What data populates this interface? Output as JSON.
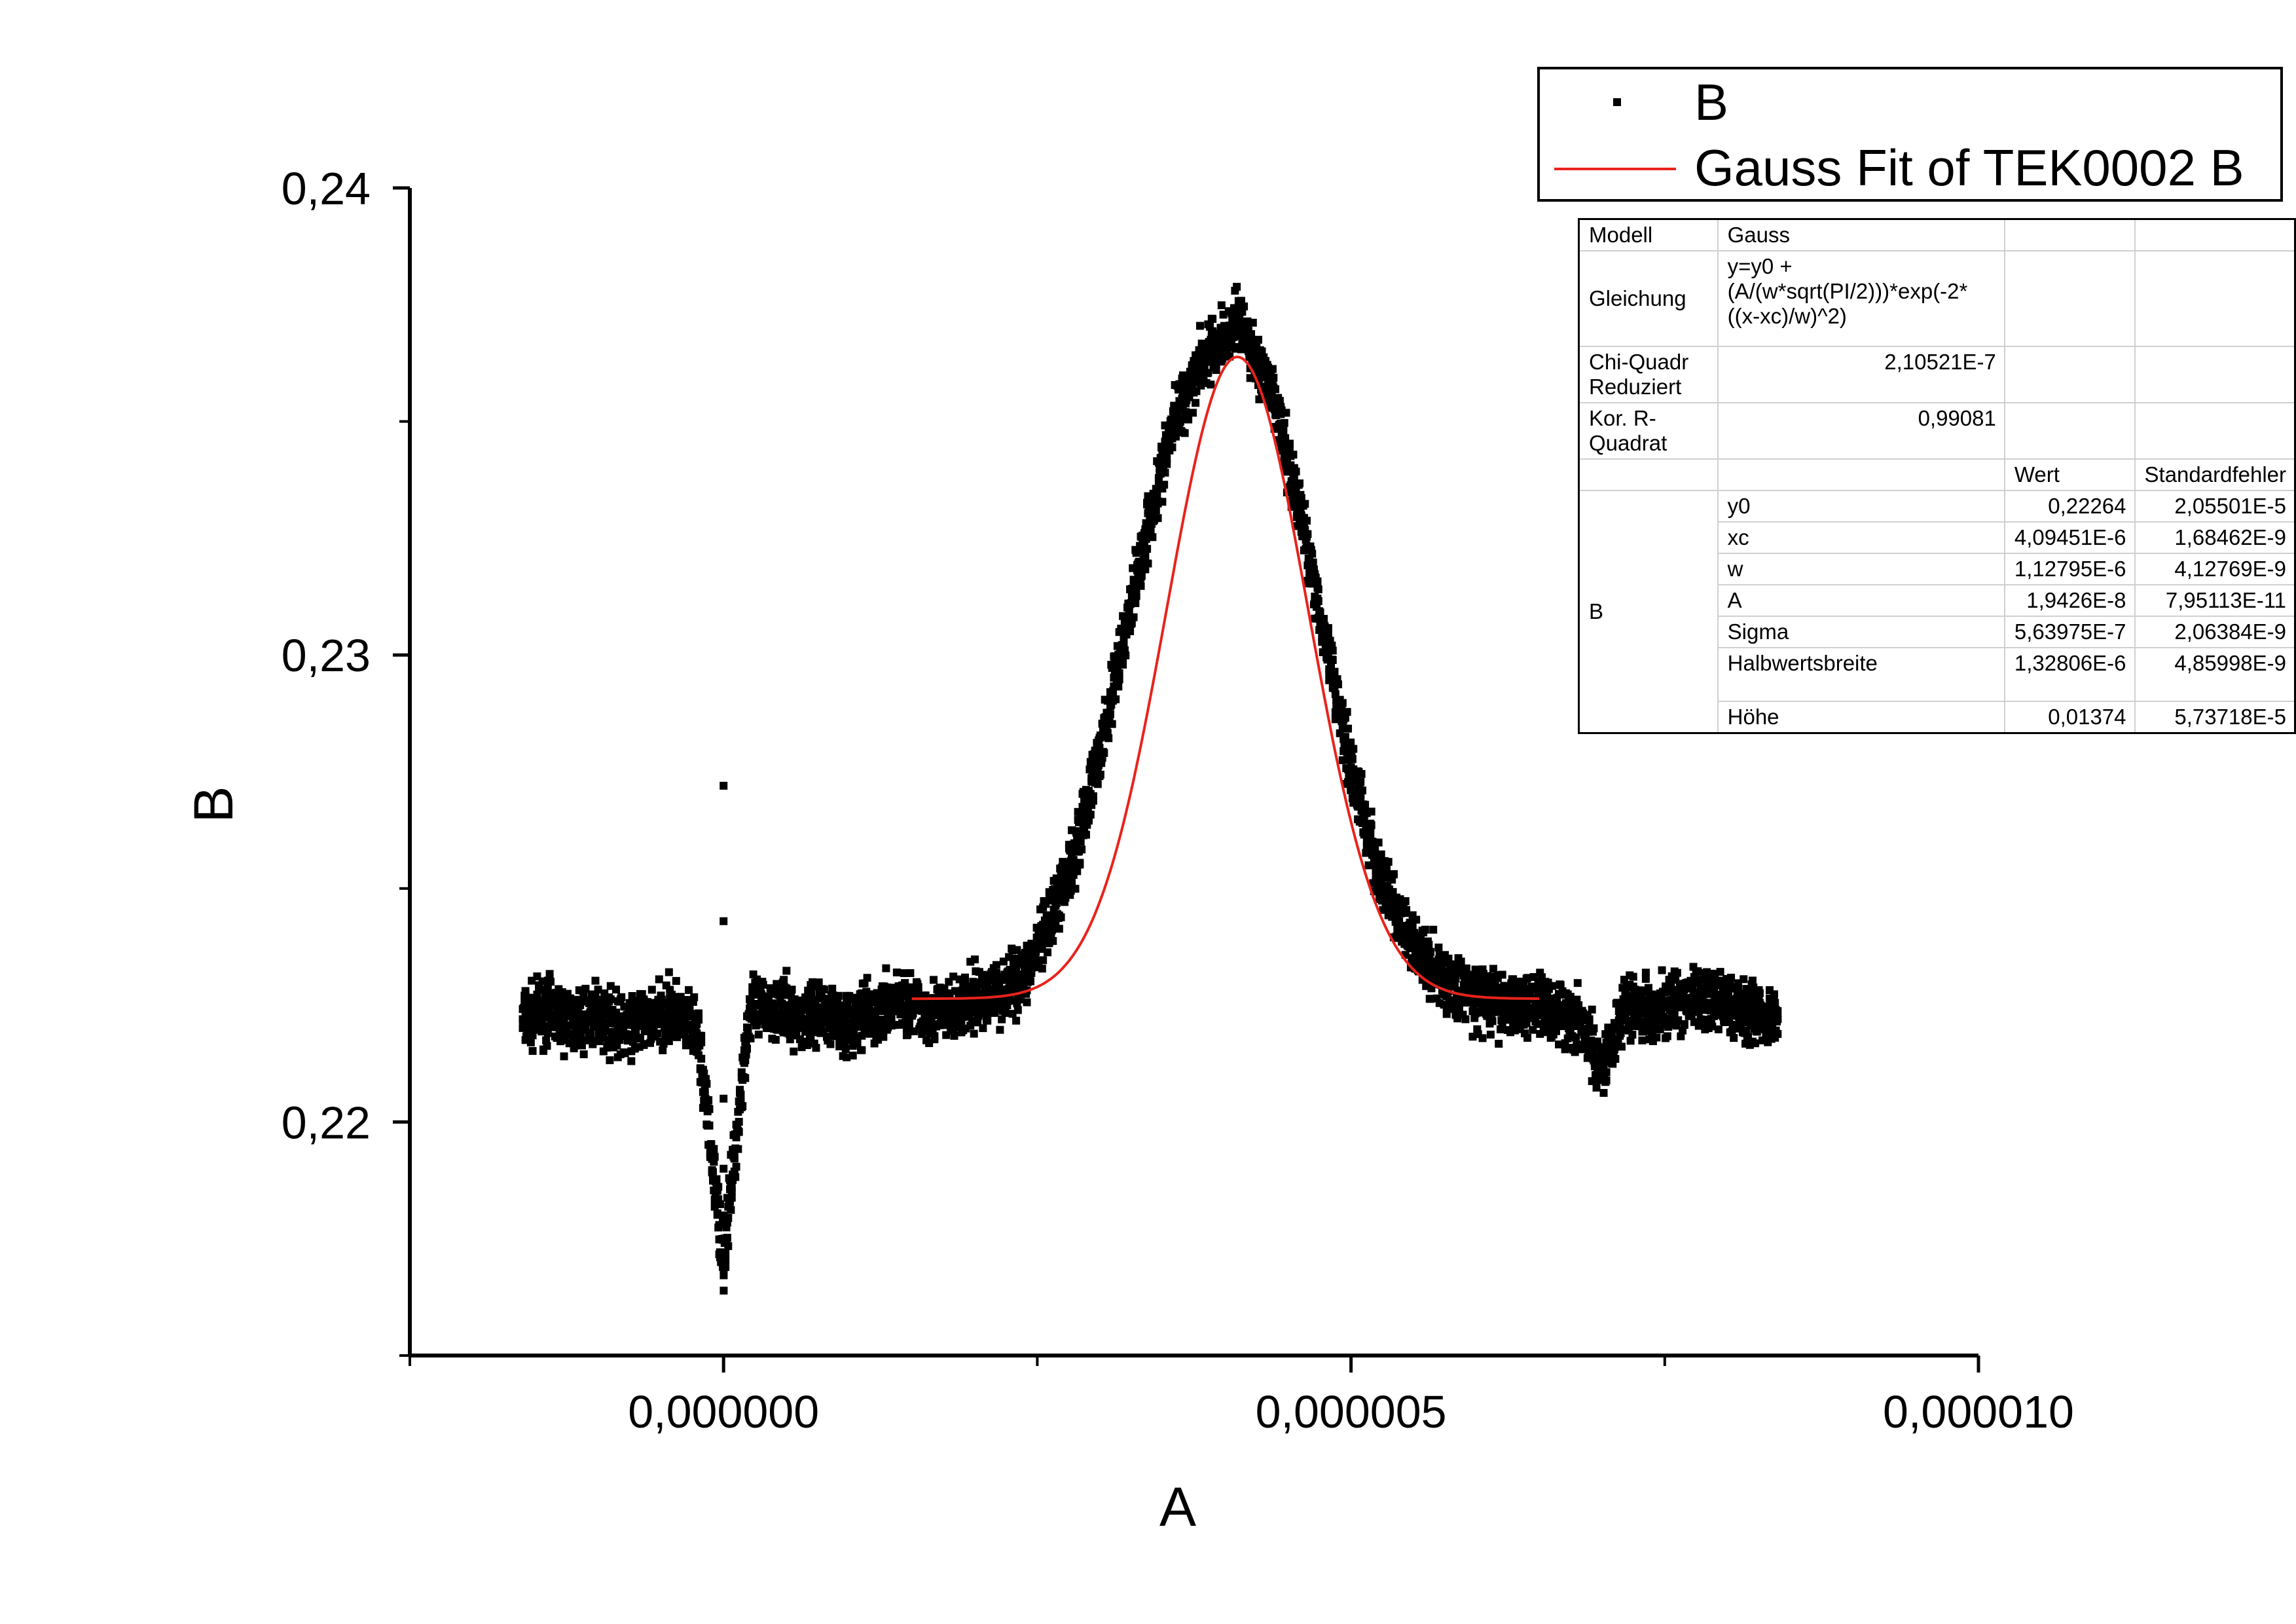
{
  "chart_data": {
    "type": "scatter",
    "xlabel": "A",
    "ylabel": "B",
    "xlim": [
      -2.5e-06,
      1e-05
    ],
    "ylim": [
      0.215,
      0.24
    ],
    "x_ticks": [
      {
        "value": 0,
        "label": "0,000000"
      },
      {
        "value": 5e-06,
        "label": "0,000005"
      },
      {
        "value": 1e-05,
        "label": "0,000010"
      }
    ],
    "y_ticks": [
      {
        "value": 0.22,
        "label": "0,22"
      },
      {
        "value": 0.23,
        "label": "0,23"
      },
      {
        "value": 0.24,
        "label": "0,24"
      }
    ],
    "series": [
      {
        "name": "B",
        "kind": "scatter",
        "color": "#000000",
        "x_range": [
          -1.6e-06,
          8.4e-06
        ],
        "points": [
          [
            -1.6e-06,
            0.2222
          ],
          [
            -1.4e-06,
            0.2224
          ],
          [
            -1.2e-06,
            0.2221
          ],
          [
            -1e-06,
            0.2223
          ],
          [
            -8e-07,
            0.222
          ],
          [
            -6e-07,
            0.2222
          ],
          [
            -4e-07,
            0.2224
          ],
          [
            -2e-07,
            0.2218
          ],
          [
            0.0,
            0.217
          ],
          [
            0.0,
            0.218
          ],
          [
            0.0,
            0.219
          ],
          [
            0.0,
            0.2205
          ],
          [
            0.0,
            0.2243
          ],
          [
            0.0,
            0.2272
          ],
          [
            2e-07,
            0.2223
          ],
          [
            4e-07,
            0.2225
          ],
          [
            6e-07,
            0.2222
          ],
          [
            8e-07,
            0.2224
          ],
          [
            1e-06,
            0.2221
          ],
          [
            1.2e-06,
            0.2223
          ],
          [
            1.4e-06,
            0.2226
          ],
          [
            1.6e-06,
            0.2224
          ],
          [
            1.8e-06,
            0.2223
          ],
          [
            2e-06,
            0.2226
          ],
          [
            2.2e-06,
            0.2228
          ],
          [
            2.4e-06,
            0.2232
          ],
          [
            2.6e-06,
            0.2242
          ],
          [
            2.8e-06,
            0.2258
          ],
          [
            3e-06,
            0.2279
          ],
          [
            3.2e-06,
            0.2305
          ],
          [
            3.4e-06,
            0.233
          ],
          [
            3.6e-06,
            0.2351
          ],
          [
            3.8e-06,
            0.2363
          ],
          [
            4e-06,
            0.2368
          ],
          [
            4.1e-06,
            0.2372
          ],
          [
            4.2e-06,
            0.2366
          ],
          [
            4.4e-06,
            0.2353
          ],
          [
            4.6e-06,
            0.233
          ],
          [
            4.8e-06,
            0.2303
          ],
          [
            5e-06,
            0.2276
          ],
          [
            5.2e-06,
            0.2255
          ],
          [
            5.4e-06,
            0.2242
          ],
          [
            5.6e-06,
            0.2234
          ],
          [
            5.8e-06,
            0.2229
          ],
          [
            6e-06,
            0.2227
          ],
          [
            6.2e-06,
            0.2225
          ],
          [
            6.4e-06,
            0.2226
          ],
          [
            6.6e-06,
            0.2224
          ],
          [
            6.8e-06,
            0.2222
          ],
          [
            7e-06,
            0.2212
          ],
          [
            7.2e-06,
            0.2226
          ],
          [
            7.4e-06,
            0.2224
          ],
          [
            7.6e-06,
            0.2225
          ],
          [
            7.8e-06,
            0.2227
          ],
          [
            8e-06,
            0.2225
          ],
          [
            8.2e-06,
            0.2224
          ],
          [
            8.4e-06,
            0.2222
          ]
        ]
      },
      {
        "name": "Gauss Fit of TEK0002 B",
        "kind": "line",
        "color": "#e8231c",
        "x_range": [
          1.5e-06,
          6.5e-06
        ],
        "model": {
          "y0": 0.22264,
          "xc": 4.09451e-06,
          "w": 1.12795e-06,
          "A": 1.9426e-08
        }
      }
    ]
  },
  "legend": {
    "entries": [
      {
        "label": "B",
        "symbol": "dot"
      },
      {
        "label": "Gauss Fit of TEK0002 B",
        "symbol": "line"
      }
    ]
  },
  "fit_table": {
    "modell_label": "Modell",
    "modell_value": "Gauss",
    "gleichung_label": "Gleichung",
    "gleichung_value": "y=y0 + (A/(w*sqrt(PI/2)))*exp(-2*((x-xc)/w)^2)",
    "chi_label": "Chi-Quadr Reduziert",
    "chi_value": "2,10521E-7",
    "r2_label": "Kor. R-Quadrat",
    "r2_value": "0,99081",
    "col_wert": "Wert",
    "col_std": "Standardfehler",
    "group_label": "B",
    "params": [
      {
        "name": "y0",
        "wert": "0,22264",
        "std": "2,05501E-5"
      },
      {
        "name": "xc",
        "wert": "4,09451E-6",
        "std": "1,68462E-9"
      },
      {
        "name": "w",
        "wert": "1,12795E-6",
        "std": "4,12769E-9"
      },
      {
        "name": "A",
        "wert": "1,9426E-8",
        "std": "7,95113E-11"
      },
      {
        "name": "Sigma",
        "wert": "5,63975E-7",
        "std": "2,06384E-9"
      },
      {
        "name": "Halbwertsbreite",
        "wert": "1,32806E-6",
        "std": "4,85998E-9"
      },
      {
        "name": "Höhe",
        "wert": "0,01374",
        "std": "5,73718E-5"
      }
    ]
  }
}
